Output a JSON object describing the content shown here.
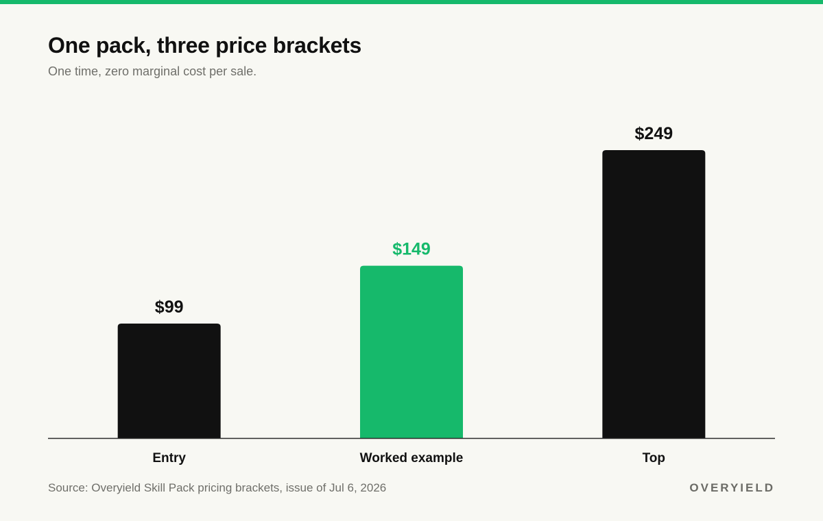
{
  "brand_color": "#16b96b",
  "text_color": "#111111",
  "header": {
    "title": "One pack, three price brackets",
    "subtitle": "One time, zero marginal cost per sale."
  },
  "chart_data": {
    "type": "bar",
    "title": "One pack, three price brackets",
    "subtitle": "One time, zero marginal cost per sale.",
    "categories": [
      "Entry",
      "Worked example",
      "Top"
    ],
    "values": [
      99,
      149,
      249
    ],
    "value_labels": [
      "$99",
      "$149",
      "$249"
    ],
    "highlight": "Worked example",
    "bar_colors": [
      "#111111",
      "#16b96b",
      "#111111"
    ],
    "xlabel": "",
    "ylabel": "",
    "ylim": [
      0,
      249
    ],
    "grid": false,
    "legend": "none"
  },
  "footer": {
    "source": "Source: Overyield Skill Pack pricing brackets, issue of Jul 6, 2026",
    "brand": "OVERYIELD"
  }
}
